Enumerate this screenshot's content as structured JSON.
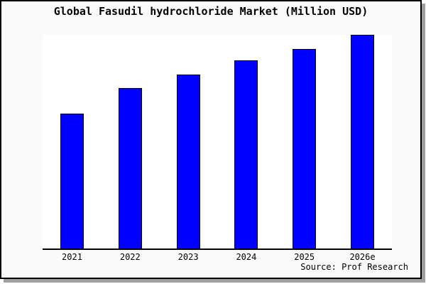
{
  "chart": {
    "title": "Global Fasudil hydrochloride Market (Million USD)",
    "source": "Source: Prof Research"
  },
  "chart_data": {
    "type": "bar",
    "title": "Global Fasudil hydrochloride Market (Million USD)",
    "categories": [
      "2021",
      "2022",
      "2023",
      "2024",
      "2025",
      "2026e"
    ],
    "values": [
      63,
      75,
      81.5,
      88,
      93.5,
      100
    ],
    "xlabel": "",
    "ylabel": "",
    "legend": "none",
    "grid": false,
    "y_axis_ticks_visible": false,
    "note": "No y-axis scale or data labels are shown in the chart; values are relative bar heights expressed as percent of the tallest bar (2026e = 100).",
    "source": "Source: Prof Research",
    "bar_fill_color": "#0000ff",
    "bar_border_color": "#000000"
  },
  "colors": {
    "frame_background": "#fafafa",
    "plot_background": "#ffffff",
    "frame_border": "#000000",
    "axis_line": "#000000",
    "drop_shadow": "#a0a0a0",
    "bar_fill": "#0000ff"
  }
}
